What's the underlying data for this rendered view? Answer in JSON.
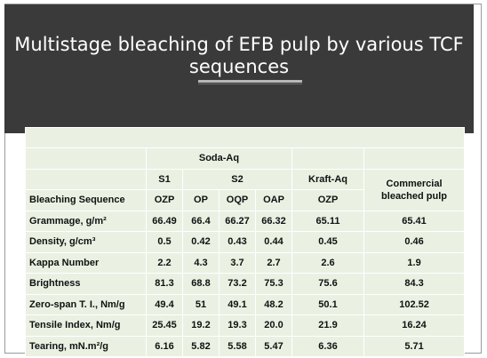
{
  "slide": {
    "title_line1": "Multistage bleaching of EFB pulp by various TCF",
    "title_line2": "sequences"
  },
  "table": {
    "groups": {
      "soda": "Soda-Aq",
      "kraft": "Kraft-Aq",
      "commercial": "Commercial bleached pulp"
    },
    "stages": {
      "s1": "S1",
      "s2": "S2"
    },
    "seq_label": "Bleaching Sequence",
    "sequences": [
      "OZP",
      "OP",
      "OQP",
      "OAP",
      "OZP"
    ],
    "rows": [
      {
        "label": "Grammage, g/m²",
        "values": [
          "66.49",
          "66.4",
          "66.27",
          "66.32",
          "65.11",
          "65.41"
        ]
      },
      {
        "label": "Density, g/cm³",
        "values": [
          "0.5",
          "0.42",
          "0.43",
          "0.44",
          "0.45",
          "0.46"
        ]
      },
      {
        "label": "Kappa Number",
        "values": [
          "2.2",
          "4.3",
          "3.7",
          "2.7",
          "2.6",
          "1.9"
        ]
      },
      {
        "label": "Brightness",
        "values": [
          "81.3",
          "68.8",
          "73.2",
          "75.3",
          "75.6",
          "84.3"
        ]
      },
      {
        "label": "Zero-span T. I., Nm/g",
        "values": [
          "49.4",
          "51",
          "49.1",
          "48.2",
          "50.1",
          "102.52"
        ]
      },
      {
        "label": "Tensile Index, Nm/g",
        "values": [
          "25.45",
          "19.2",
          "19.3",
          "20.0",
          "21.9",
          "16.24"
        ]
      },
      {
        "label": "Tearing, mN.m²/g",
        "values": [
          "6.16",
          "5.82",
          "5.58",
          "5.47",
          "6.36",
          "5.71"
        ]
      }
    ]
  },
  "colors": {
    "title_bg": "#3a3a3a",
    "table_bg": "#eaf1e3",
    "title_text": "#ffffff"
  }
}
